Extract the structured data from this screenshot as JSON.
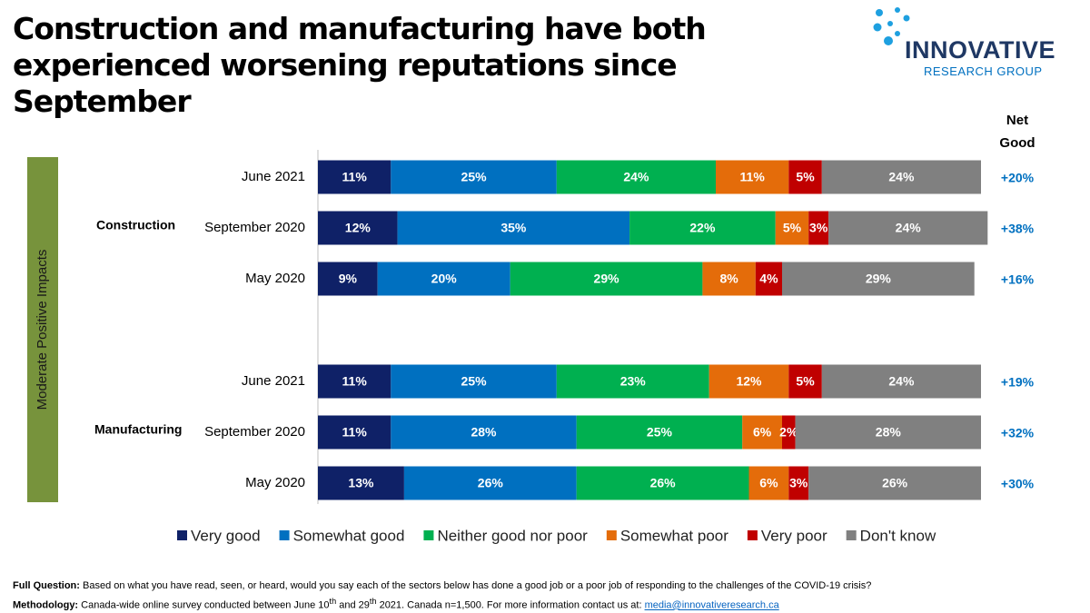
{
  "title": "Construction and manufacturing have both experienced worsening reputations since September",
  "logo": {
    "name": "INNOVATIVE",
    "subtitle": "RESEARCH GROUP"
  },
  "footnotes": {
    "question_label": "Full Question:",
    "question": "Based on what you have read, seen, or heard, would you say each of the sectors below has done a good job or a poor job of responding to the challenges of the COVID-19 crisis?",
    "methodology_label": "Methodology:",
    "methodology_parts": [
      "Canada-wide online survey conducted between June 10",
      "th",
      " and 29",
      "th",
      "  2021.  Canada n=1,500.  For more information contact us at: "
    ],
    "email": "media@innovativeresearch.ca"
  },
  "chart_data": {
    "type": "stacked_bar_horizontal",
    "side_label": "Moderate Positive Impacts",
    "groups": [
      "Construction",
      "Manufacturing"
    ],
    "categories": [
      "June 2021",
      "September 2020",
      "May 2020",
      "June 2021",
      "September 2020",
      "May 2020"
    ],
    "xlim": [
      0,
      100
    ],
    "series": [
      {
        "name": "Very good",
        "color": "#0f2167",
        "values": [
          11,
          12,
          9,
          11,
          11,
          13
        ],
        "value_labels": [
          "11%",
          "12%",
          "9%",
          "11%",
          "11%",
          "13%"
        ]
      },
      {
        "name": "Somewhat good",
        "color": "#0070c0",
        "values": [
          25,
          35,
          20,
          25,
          28,
          26
        ],
        "value_labels": [
          "25%",
          "35%",
          "20%",
          "25%",
          "28%",
          "26%"
        ]
      },
      {
        "name": "Neither good nor poor",
        "color": "#00b050",
        "values": [
          24,
          22,
          29,
          23,
          25,
          26
        ],
        "value_labels": [
          "24%",
          "22%",
          "29%",
          "23%",
          "25%",
          "26%"
        ]
      },
      {
        "name": "Somewhat poor",
        "color": "#e46c0a",
        "values": [
          11,
          5,
          8,
          12,
          6,
          6
        ],
        "value_labels": [
          "11%",
          "5%",
          "8%",
          "12%",
          "6%",
          "6%"
        ]
      },
      {
        "name": "Very poor",
        "color": "#c00000",
        "values": [
          5,
          3,
          4,
          5,
          2,
          3
        ],
        "value_labels": [
          "5%",
          "3%",
          "4%",
          "5%",
          "2%",
          "3%"
        ]
      },
      {
        "name": "Don't know",
        "color": "#808080",
        "values": [
          24,
          24,
          29,
          24,
          28,
          26
        ],
        "value_labels": [
          "24%",
          "24%",
          "29%",
          "24%",
          "28%",
          "26%"
        ]
      }
    ],
    "net_good": {
      "name": "Net Good",
      "color": "#0070c0",
      "values": [
        20,
        38,
        16,
        19,
        32,
        30
      ],
      "value_labels": [
        "+20%",
        "+38%",
        "+16%",
        "+19%",
        "+32%",
        "+30%"
      ]
    }
  }
}
